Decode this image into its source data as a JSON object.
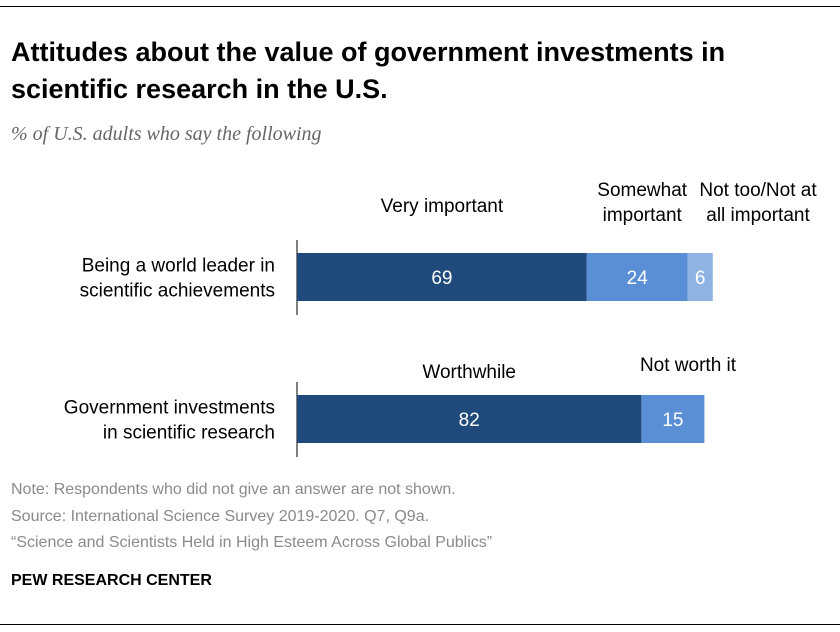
{
  "title": "Attitudes about the value of government investments in scientific research in the U.S.",
  "subtitle": "% of U.S. adults who say the following",
  "chart_data": {
    "type": "bar",
    "orientation": "horizontal",
    "stacked": true,
    "xlim": [
      0,
      100
    ],
    "grid": false,
    "rows": [
      {
        "category": [
          "Being a world leader in",
          "scientific achievements"
        ],
        "segments": [
          {
            "label": [
              "Very important"
            ],
            "value": 69,
            "color": "#214a7c"
          },
          {
            "label": [
              "Somewhat",
              "important"
            ],
            "value": 24,
            "color": "#5a8fd6"
          },
          {
            "label": [
              "Not too/Not at",
              "all important"
            ],
            "value": 6,
            "color": "#8fb3e3"
          }
        ]
      },
      {
        "category": [
          "Government investments",
          "in scientific research"
        ],
        "segments": [
          {
            "label": [
              "Worthwhile"
            ],
            "value": 82,
            "color": "#214a7c"
          },
          {
            "label": [
              "Not worth it"
            ],
            "value": 15,
            "color": "#5a8fd6"
          }
        ]
      }
    ]
  },
  "footer": {
    "note": "Note: Respondents who did not give an answer are not shown.",
    "source": "Source: International Science Survey 2019-2020. Q7, Q9a.",
    "report": "“Science and Scientists Held in High Esteem Across Global Publics”",
    "brand": "PEW RESEARCH CENTER"
  }
}
